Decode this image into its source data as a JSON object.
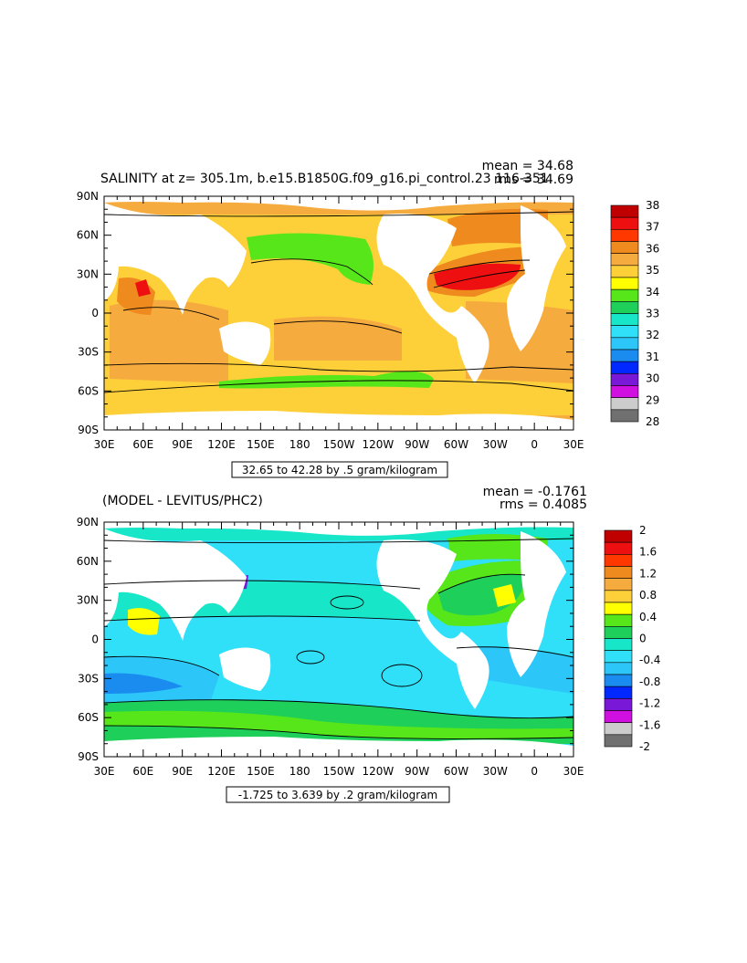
{
  "colors": {
    "land": "#ffffff",
    "frame": "#000000",
    "contour": "#000000"
  },
  "panels": [
    {
      "id": "salinity",
      "title": "SALINITY at z= 305.1m, b.e15.B1850G.f09_g16.pi_control.23 116-351",
      "stats": {
        "mean": "mean = 34.68",
        "rms": "rms = 34.69"
      },
      "range_label": "32.65 to 42.28 by .5 gram/kilogram",
      "colorbar": {
        "labels": [
          "38",
          "37",
          "36",
          "35",
          "34",
          "33",
          "32",
          "31",
          "30",
          "29",
          "28"
        ],
        "colors": [
          "#c00000",
          "#ee1010",
          "#ff3800",
          "#ef8a1f",
          "#f6ab3f",
          "#fdd03a",
          "#ffff00",
          "#56e61a",
          "#1ecf5a",
          "#18e6c8",
          "#30e0f8",
          "#2cc6f8",
          "#1a8cf0",
          "#0028ff",
          "#7a18d8",
          "#d010e0",
          "#cccccc",
          "#707070"
        ]
      }
    },
    {
      "id": "difference",
      "title": "(MODEL - LEVITUS/PHC2)",
      "stats": {
        "mean": "mean = -0.1761",
        "rms": "rms = 0.4085"
      },
      "range_label": "-1.725 to 3.639 by .2 gram/kilogram",
      "colorbar": {
        "labels": [
          "2",
          "1.6",
          "1.2",
          "0.8",
          "0.4",
          "0",
          "-0.4",
          "-0.8",
          "-1.2",
          "-1.6",
          "-2"
        ],
        "colors": [
          "#c00000",
          "#ee1010",
          "#ff3800",
          "#ef8a1f",
          "#f6ab3f",
          "#fdd03a",
          "#ffff00",
          "#56e61a",
          "#1ecf5a",
          "#18e6c8",
          "#30e0f8",
          "#2cc6f8",
          "#1a8cf0",
          "#0028ff",
          "#7a18d8",
          "#d010e0",
          "#cccccc",
          "#707070"
        ]
      }
    }
  ],
  "axes": {
    "lat_labels": [
      "90N",
      "60N",
      "30N",
      "0",
      "30S",
      "60S",
      "90S"
    ],
    "lon_labels": [
      "30E",
      "60E",
      "90E",
      "120E",
      "150E",
      "180",
      "150W",
      "120W",
      "90W",
      "60W",
      "30W",
      "0",
      "30E"
    ]
  }
}
